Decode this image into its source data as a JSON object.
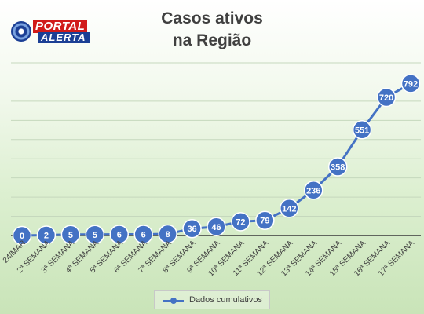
{
  "logo": {
    "line1": "PORTAL",
    "line2": "ALERTA"
  },
  "chart_data": {
    "type": "line",
    "title_lines": [
      "Casos ativos",
      "na Região"
    ],
    "categories": [
      "24/MAR",
      "2ª SEMANA",
      "3ª SEMANA",
      "4ª SEMANA",
      "5ª SEMANA",
      "6ª SEMANA",
      "7ª SEMANA",
      "8ª SEMANA",
      "9ª SEMANA",
      "10ª SEMANA",
      "11ª SEMANA",
      "12ª SEMANA",
      "13ª SEMANA",
      "14ª SEMANA",
      "15ª SEMANA",
      "16ª SEMANA",
      "17ª SEMANA"
    ],
    "series": [
      {
        "name": "Dados cumulativos",
        "values": [
          0,
          2,
          5,
          5,
          6,
          6,
          8,
          36,
          46,
          72,
          79,
          142,
          236,
          358,
          551,
          720,
          792
        ],
        "color": "#4472c4"
      }
    ],
    "ylim": [
      0,
      900
    ],
    "grid": true,
    "legend_position": "bottom",
    "data_labels": true
  }
}
